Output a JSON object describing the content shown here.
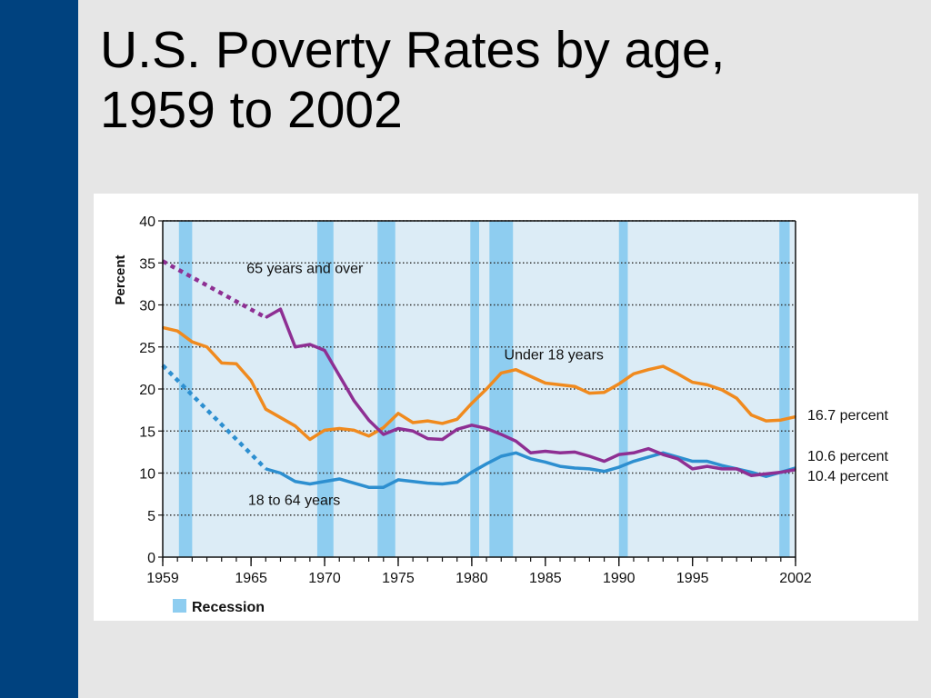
{
  "slide": {
    "title_line1": "U.S. Poverty Rates by age,",
    "title_line2": "1959 to 2002"
  },
  "colors": {
    "sidebar": "#00427f",
    "plot_background": "#dcecf6",
    "recession_band": "#8ecdf0",
    "under18": "#f08a1e",
    "age18to64": "#2d8fd0",
    "age65plus": "#8e2f93"
  },
  "chart_data": {
    "type": "line",
    "ylabel": "Percent",
    "ylim": [
      0,
      40
    ],
    "xlim": [
      1959,
      2002
    ],
    "y_ticks": [
      0,
      5,
      10,
      15,
      20,
      25,
      30,
      35,
      40
    ],
    "x_tick_labels": [
      "1959",
      "1965",
      "1970",
      "1975",
      "1980",
      "1985",
      "1990",
      "1995",
      "2002"
    ],
    "grid": "horizontal dotted",
    "legend": {
      "label": "Recession",
      "placement": "bottom-left"
    },
    "recessions": [
      [
        1960.1,
        1961.0
      ],
      [
        1969.5,
        1970.6
      ],
      [
        1973.6,
        1974.8
      ],
      [
        1979.9,
        1980.5
      ],
      [
        1981.2,
        1982.8
      ],
      [
        1990.0,
        1990.6
      ],
      [
        2000.9,
        2001.6
      ]
    ],
    "series": [
      {
        "name": "Under 18 years",
        "color": "#f08a1e",
        "x": [
          1959,
          1960,
          1961,
          1962,
          1963,
          1964,
          1965,
          1966,
          1967,
          1968,
          1969,
          1970,
          1971,
          1972,
          1973,
          1974,
          1975,
          1976,
          1977,
          1978,
          1979,
          1980,
          1981,
          1982,
          1983,
          1984,
          1985,
          1986,
          1987,
          1988,
          1989,
          1990,
          1991,
          1992,
          1993,
          1994,
          1995,
          1996,
          1997,
          1998,
          1999,
          2000,
          2001,
          2002
        ],
        "values": [
          27.3,
          26.9,
          25.6,
          25.0,
          23.1,
          23.0,
          21.0,
          17.6,
          16.6,
          15.6,
          14.0,
          15.1,
          15.3,
          15.1,
          14.4,
          15.4,
          17.1,
          16.0,
          16.2,
          15.9,
          16.4,
          18.3,
          20.0,
          21.9,
          22.3,
          21.5,
          20.7,
          20.5,
          20.3,
          19.5,
          19.6,
          20.6,
          21.8,
          22.3,
          22.7,
          21.8,
          20.8,
          20.5,
          19.9,
          18.9,
          16.9,
          16.2,
          16.3,
          16.7
        ],
        "end_label": "16.7 percent"
      },
      {
        "name": "18 to 64 years",
        "color": "#2d8fd0",
        "dashed_until": 1966,
        "x": [
          1959,
          1966,
          1967,
          1968,
          1969,
          1970,
          1971,
          1972,
          1973,
          1974,
          1975,
          1976,
          1977,
          1978,
          1979,
          1980,
          1981,
          1982,
          1983,
          1984,
          1985,
          1986,
          1987,
          1988,
          1989,
          1990,
          1991,
          1992,
          1993,
          1994,
          1995,
          1996,
          1997,
          1998,
          1999,
          2000,
          2001,
          2002
        ],
        "values": [
          22.8,
          10.5,
          10.0,
          9.0,
          8.7,
          9.0,
          9.3,
          8.8,
          8.3,
          8.3,
          9.2,
          9.0,
          8.8,
          8.7,
          8.9,
          10.1,
          11.1,
          12.0,
          12.4,
          11.7,
          11.3,
          10.8,
          10.6,
          10.5,
          10.2,
          10.7,
          11.4,
          11.9,
          12.4,
          11.9,
          11.4,
          11.4,
          10.9,
          10.5,
          10.1,
          9.6,
          10.1,
          10.6
        ],
        "end_label": "10.6 percent"
      },
      {
        "name": "65 years and over",
        "color": "#8e2f93",
        "dashed_until": 1966,
        "x": [
          1959,
          1966,
          1967,
          1968,
          1969,
          1970,
          1971,
          1972,
          1973,
          1974,
          1975,
          1976,
          1977,
          1978,
          1979,
          1980,
          1981,
          1982,
          1983,
          1984,
          1985,
          1986,
          1987,
          1988,
          1989,
          1990,
          1991,
          1992,
          1993,
          1994,
          1995,
          1996,
          1997,
          1998,
          1999,
          2000,
          2001,
          2002
        ],
        "values": [
          35.2,
          28.5,
          29.5,
          25.0,
          25.3,
          24.6,
          21.6,
          18.6,
          16.3,
          14.6,
          15.3,
          15.0,
          14.1,
          14.0,
          15.2,
          15.7,
          15.3,
          14.6,
          13.8,
          12.4,
          12.6,
          12.4,
          12.5,
          12.0,
          11.4,
          12.2,
          12.4,
          12.9,
          12.2,
          11.7,
          10.5,
          10.8,
          10.5,
          10.5,
          9.7,
          9.9,
          10.1,
          10.4
        ],
        "end_label": "10.4 percent"
      }
    ]
  }
}
